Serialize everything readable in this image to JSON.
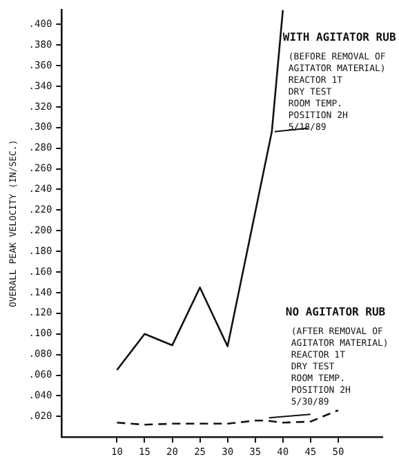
{
  "chart_data": {
    "type": "line",
    "ylabel": "OVERALL PEAK VELOCITY (IN/SEC.)",
    "xlim": [
      0,
      58
    ],
    "xticks": [
      10,
      15,
      20,
      25,
      30,
      35,
      40,
      45,
      50
    ],
    "ylim": [
      0,
      0.414
    ],
    "yticks": [
      {
        "value": 0.02,
        "label": ".020"
      },
      {
        "value": 0.04,
        "label": ".040"
      },
      {
        "value": 0.06,
        "label": ".060"
      },
      {
        "value": 0.08,
        "label": ".080"
      },
      {
        "value": 0.1,
        "label": ".100"
      },
      {
        "value": 0.12,
        "label": ".120"
      },
      {
        "value": 0.14,
        "label": ".140"
      },
      {
        "value": 0.16,
        "label": ".160"
      },
      {
        "value": 0.18,
        "label": ".180"
      },
      {
        "value": 0.2,
        "label": ".200"
      },
      {
        "value": 0.22,
        "label": ".220"
      },
      {
        "value": 0.24,
        "label": ".240"
      },
      {
        "value": 0.26,
        "label": ".260"
      },
      {
        "value": 0.28,
        "label": ".280"
      },
      {
        "value": 0.3,
        "label": ".300"
      },
      {
        "value": 0.32,
        "label": ".320"
      },
      {
        "value": 0.34,
        "label": ".340"
      },
      {
        "value": 0.36,
        "label": ".360"
      },
      {
        "value": 0.38,
        "label": ".380"
      },
      {
        "value": 0.4,
        "label": ".400"
      }
    ],
    "series": [
      {
        "color": "#111111",
        "line_style": "solid",
        "x": [
          10,
          15,
          20,
          25,
          30,
          38,
          40
        ],
        "values": [
          0.065,
          0.1,
          0.089,
          0.145,
          0.088,
          0.296,
          0.414
        ]
      },
      {
        "color": "#111111",
        "line_style": "dashed",
        "x": [
          10,
          15,
          20,
          25,
          30,
          35,
          37,
          40,
          45,
          50
        ],
        "values": [
          0.014,
          0.012,
          0.013,
          0.013,
          0.013,
          0.016,
          0.016,
          0.014,
          0.015,
          0.026
        ]
      }
    ],
    "annotations": [
      {
        "text": "WITH AGITATOR RUB\n(BEFORE REMOVAL OF\nAGITATOR MATERIAL)\nREACTOR 1T\nDRY TEST\nROOM TEMP.\nPOSITION 2H\n5/18/89",
        "x": 38,
        "y": 0.296
      },
      {
        "text": "NO AGITATOR RUB\n(AFTER REMOVAL OF\nAGITATOR MATERIAL)\nREACTOR 1T\nDRY TEST\nROOM TEMP.\nPOSITION 2H\n5/30/89",
        "x": 37,
        "y": 0.016
      }
    ],
    "grid": false,
    "marker": "none",
    "legend": false
  }
}
